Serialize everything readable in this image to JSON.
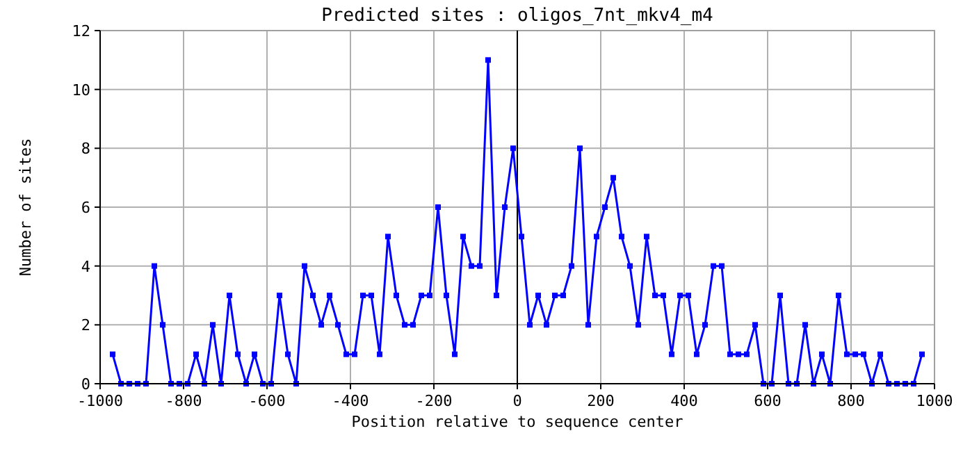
{
  "chart_data": {
    "type": "line",
    "title": "Predicted sites : oligos_7nt_mkv4_m4",
    "xlabel": "Position relative to sequence center",
    "ylabel": "Number of sites",
    "x": [
      -970,
      -950,
      -930,
      -910,
      -890,
      -870,
      -850,
      -830,
      -810,
      -790,
      -770,
      -750,
      -730,
      -710,
      -690,
      -670,
      -650,
      -630,
      -610,
      -590,
      -570,
      -550,
      -530,
      -510,
      -490,
      -470,
      -450,
      -430,
      -410,
      -390,
      -370,
      -350,
      -330,
      -310,
      -290,
      -270,
      -250,
      -230,
      -210,
      -190,
      -170,
      -150,
      -130,
      -110,
      -90,
      -70,
      -50,
      -30,
      -10,
      10,
      30,
      50,
      70,
      90,
      110,
      130,
      150,
      170,
      190,
      210,
      230,
      250,
      270,
      290,
      310,
      330,
      350,
      370,
      390,
      410,
      430,
      450,
      470,
      490,
      510,
      530,
      550,
      570,
      590,
      610,
      630,
      650,
      670,
      690,
      710,
      730,
      750,
      770,
      790,
      810,
      830,
      850,
      870,
      890,
      910,
      930,
      950,
      970
    ],
    "series": [
      {
        "color": "#0000ff",
        "values": [
          1,
          0,
          0,
          0,
          0,
          4,
          2,
          0,
          0,
          0,
          1,
          0,
          2,
          0,
          3,
          1,
          0,
          1,
          0,
          0,
          3,
          1,
          0,
          4,
          3,
          2,
          3,
          2,
          1,
          1,
          3,
          3,
          1,
          5,
          3,
          2,
          2,
          3,
          3,
          6,
          3,
          1,
          5,
          4,
          4,
          11,
          3,
          6,
          8,
          5,
          2,
          3,
          2,
          3,
          3,
          4,
          8,
          2,
          5,
          6,
          7,
          5,
          4,
          2,
          5,
          3,
          3,
          1,
          3,
          3,
          1,
          2,
          4,
          4,
          1,
          1,
          1,
          2,
          0,
          0,
          3,
          0,
          0,
          2,
          0,
          1,
          0,
          3,
          1,
          1,
          1,
          0,
          1,
          0,
          0,
          0,
          0,
          1
        ]
      }
    ],
    "xlim": [
      -1000,
      1000
    ],
    "xticks": [
      -1000,
      -800,
      -600,
      -400,
      -200,
      0,
      200,
      400,
      600,
      800,
      1000
    ],
    "ylim": [
      0,
      12
    ],
    "yticks": [
      0,
      2,
      4,
      6,
      8,
      10,
      12
    ],
    "grid": true,
    "marker": "square",
    "line_style": "solid",
    "ref_lines": [
      {
        "axis": "x",
        "value": 0,
        "color": "#000000"
      }
    ]
  }
}
